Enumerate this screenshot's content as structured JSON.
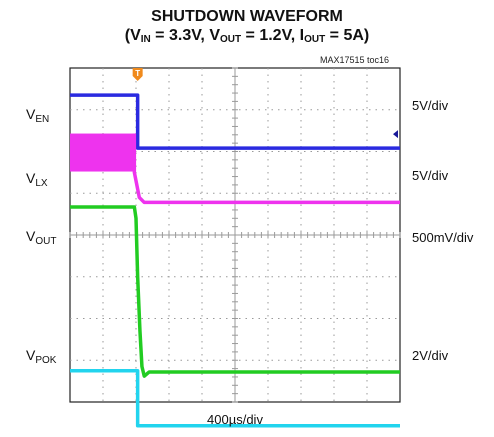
{
  "chart_data": {
    "type": "line",
    "title_line1": "SHUTDOWN WAVEFORM",
    "conditions": {
      "vin": {
        "name": "V",
        "sub": "IN",
        "value": " = 3.3V"
      },
      "vout": {
        "name": "V",
        "sub": "OUT",
        "value": " = 1.2V"
      },
      "iout": {
        "name": "I",
        "sub": "OUT",
        "value": " = 5A"
      }
    },
    "reference": "MAX17515 toc16",
    "x_scale": "400µs/div",
    "x_range_div": [
      0,
      10
    ],
    "grid": {
      "x_divisions": 10,
      "y_divisions": 8
    },
    "trigger_marker": "T",
    "series": [
      {
        "key": "ven",
        "name": "V",
        "sub": "EN",
        "scale": "5V/div",
        "color": "#2a2ae0",
        "x_div": [
          0,
          2.05,
          2.05,
          10
        ],
        "y_div": [
          7.35,
          7.35,
          6.08,
          6.08
        ]
      },
      {
        "key": "vlx",
        "name": "V",
        "sub": "LX",
        "scale": "5V/div",
        "color": "#ee33ee",
        "switching_until_div": 1.95,
        "switching_band_div": [
          5.52,
          6.43
        ],
        "x_div": [
          1.95,
          2.1,
          2.25,
          10
        ],
        "y_div": [
          5.5,
          4.9,
          4.78,
          4.78
        ]
      },
      {
        "key": "vout",
        "name": "V",
        "sub": "OUT",
        "scale": "500mV/div",
        "color": "#22cc22",
        "x_div": [
          0,
          1.95,
          2.0,
          2.05,
          2.12,
          2.18,
          2.25,
          2.4,
          10
        ],
        "y_div": [
          4.67,
          4.67,
          4.4,
          3.0,
          1.7,
          0.85,
          0.62,
          0.72,
          0.72
        ]
      },
      {
        "key": "vpok",
        "name": "V",
        "sub": "POK",
        "scale": "2V/div",
        "color": "#22d4ee",
        "x_div": [
          0,
          2.05,
          2.05,
          10
        ],
        "y_div": [
          0.75,
          0.75,
          -0.57,
          -0.57
        ]
      }
    ]
  }
}
